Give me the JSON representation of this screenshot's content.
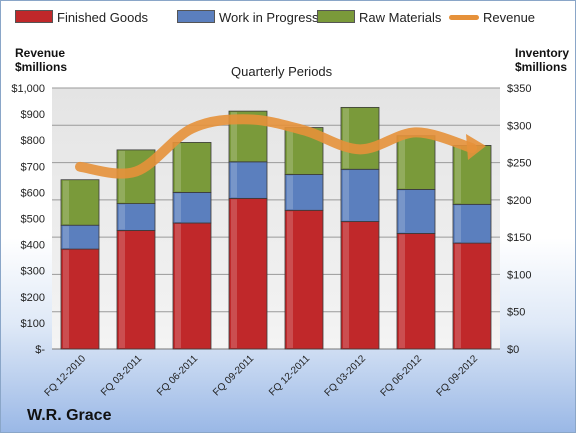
{
  "legend": {
    "finished": "Finished Goods",
    "wip": "Work in Progress",
    "raw": "Raw Materials",
    "revenue": "Revenue"
  },
  "axis_left_title": [
    "Revenue",
    "$millions"
  ],
  "axis_right_title": [
    "Inventory",
    "$millions"
  ],
  "plot_title": "Quarterly Periods",
  "company": "W.R. Grace",
  "colors": {
    "finished": "#c0282a",
    "wip": "#5b7fbe",
    "raw": "#7a9a3a",
    "revenue": "#e6913a"
  },
  "chart_data": {
    "type": "bar",
    "stacked": true,
    "title": "Quarterly Periods",
    "categories": [
      "FQ 12-2010",
      "FQ 03-2011",
      "FQ 06-2011",
      "FQ 09-2011",
      "FQ 12-2011",
      "FQ 03-2012",
      "FQ 06-2012",
      "FQ 09-2012"
    ],
    "series": [
      {
        "name": "Finished Goods",
        "axis": "right",
        "values": [
          134,
          159,
          169,
          202,
          186,
          171,
          155,
          142
        ]
      },
      {
        "name": "Work in Progress",
        "axis": "right",
        "values": [
          32,
          36,
          41,
          49,
          48,
          70,
          59,
          52
        ]
      },
      {
        "name": "Raw Materials",
        "axis": "right",
        "values": [
          61,
          72,
          67,
          68,
          63,
          83,
          72,
          79
        ]
      },
      {
        "name": "Revenue",
        "axis": "left",
        "type": "line",
        "values": [
          698,
          680,
          845,
          880,
          838,
          765,
          830,
          770
        ]
      }
    ],
    "y_left": {
      "label": "Revenue $millions",
      "ylim": [
        0,
        1000
      ],
      "ticks": [
        "$-",
        "$100",
        "$200",
        "$300",
        "$400",
        "$500",
        "$600",
        "$700",
        "$800",
        "$900",
        "$1,000"
      ]
    },
    "y_right": {
      "label": "Inventory $millions",
      "ylim": [
        0,
        350
      ],
      "ticks": [
        "$0",
        "$50",
        "$100",
        "$150",
        "$200",
        "$250",
        "$300",
        "$350"
      ]
    },
    "grid": true,
    "legend_position": "top"
  }
}
